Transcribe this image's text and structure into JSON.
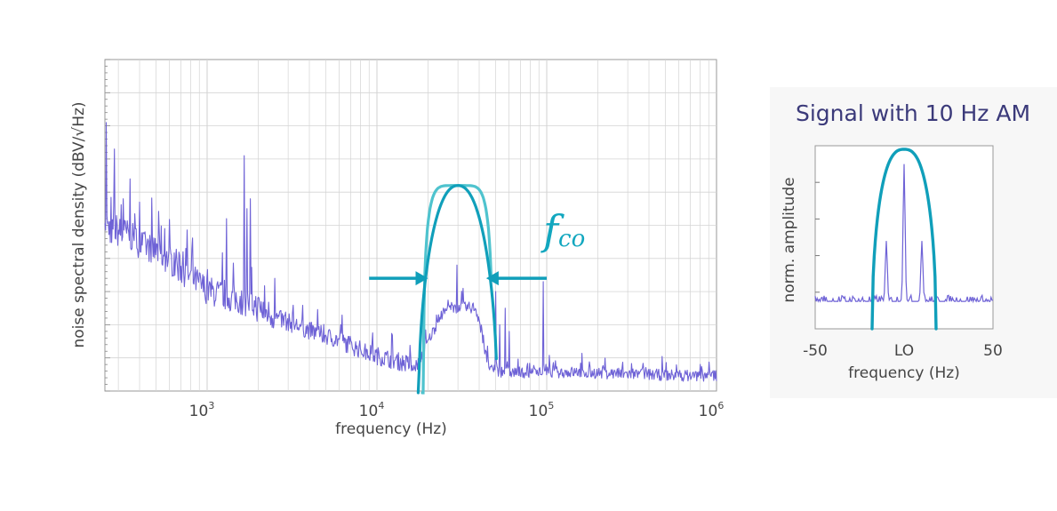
{
  "chart_data": [
    {
      "type": "line",
      "xscale": "log",
      "xlim": [
        250,
        1000000
      ],
      "xticks": [
        {
          "base": "10",
          "exp": "3",
          "value": 1000
        },
        {
          "base": "10",
          "exp": "4",
          "value": 10000
        },
        {
          "base": "10",
          "exp": "5",
          "value": 100000
        },
        {
          "base": "10",
          "exp": "6",
          "value": 1000000
        }
      ],
      "xlabel": "frequency (Hz)",
      "ylabel": "noise spectral density (dBV/√Hz)",
      "grid": true,
      "ylim": [
        0,
        10
      ],
      "colors": {
        "noise": "#6e62d6",
        "filter_dark": "#109fba",
        "filter_light": "#4fc3ce",
        "grid": "#d4d4d4"
      },
      "noise_spectrum": {
        "baseline": [
          [
            250,
            5.1
          ],
          [
            280,
            4.7
          ],
          [
            320,
            4.8
          ],
          [
            400,
            4.4
          ],
          [
            500,
            4.2
          ],
          [
            600,
            3.9
          ],
          [
            800,
            3.4
          ],
          [
            1000,
            3.0
          ],
          [
            1300,
            2.8
          ],
          [
            1800,
            2.6
          ],
          [
            2500,
            2.2
          ],
          [
            4000,
            1.8
          ],
          [
            6000,
            1.5
          ],
          [
            9000,
            1.1
          ],
          [
            15000,
            0.8
          ],
          [
            17000,
            0.7
          ],
          [
            19000,
            1.2
          ],
          [
            21000,
            1.7
          ],
          [
            24000,
            2.3
          ],
          [
            27000,
            2.5
          ],
          [
            30000,
            2.5
          ],
          [
            34000,
            2.5
          ],
          [
            38000,
            2.5
          ],
          [
            41000,
            1.9
          ],
          [
            44000,
            1.0
          ],
          [
            47000,
            0.6
          ],
          [
            60000,
            0.55
          ],
          [
            90000,
            0.55
          ],
          [
            150000,
            0.55
          ],
          [
            300000,
            0.5
          ],
          [
            600000,
            0.45
          ],
          [
            1000000,
            0.45
          ]
        ],
        "spikes": [
          [
            255,
            8.1
          ],
          [
            285,
            7.3
          ],
          [
            320,
            5.8
          ],
          [
            350,
            6.4
          ],
          [
            400,
            5.7
          ],
          [
            560,
            4.9
          ],
          [
            720,
            4.2
          ],
          [
            1300,
            5.2
          ],
          [
            1650,
            7.1
          ],
          [
            1710,
            5.5
          ],
          [
            1800,
            5.8
          ],
          [
            2500,
            3.4
          ],
          [
            29500,
            3.8
          ],
          [
            32000,
            3.1
          ],
          [
            50000,
            3.0
          ],
          [
            53000,
            2.0
          ],
          [
            57000,
            2.5
          ],
          [
            60000,
            1.8
          ],
          [
            95000,
            3.3
          ]
        ]
      },
      "filter_curves": [
        {
          "center": 30000,
          "top": 6.2,
          "edge_lo": 18500,
          "edge_hi": 47000,
          "shape": "flat",
          "color": "filter_light"
        },
        {
          "center": 30000,
          "top": 6.2,
          "edge_lo": 17500,
          "edge_hi": 50500,
          "shape": "round",
          "color": "filter_dark"
        }
      ],
      "annotation": {
        "label": "f",
        "subscript": "co",
        "left_arrow": {
          "from": 9000,
          "to": 20000,
          "y": 3.4
        },
        "right_arrow": {
          "from": 100000,
          "to": 44000,
          "y": 3.4
        }
      }
    },
    {
      "type": "line",
      "title": "Signal with 10 Hz AM",
      "xlim": [
        -50,
        50
      ],
      "xticks": [
        {
          "label": "-50",
          "value": -50
        },
        {
          "label": "LO",
          "value": 0
        },
        {
          "label": "50",
          "value": 50
        }
      ],
      "xlabel": "frequency (Hz)",
      "ylabel": "norm. amplitude",
      "ylim": [
        0,
        1
      ],
      "colors": {
        "signal": "#6e62d6",
        "filter": "#109fba"
      },
      "noise_floor": 0.15,
      "peaks": [
        {
          "x": -10,
          "y": 0.48
        },
        {
          "x": 0,
          "y": 0.9
        },
        {
          "x": 10,
          "y": 0.48
        }
      ],
      "passband": {
        "x_lo": -18,
        "x_hi": 18,
        "top": 1.0
      }
    }
  ]
}
